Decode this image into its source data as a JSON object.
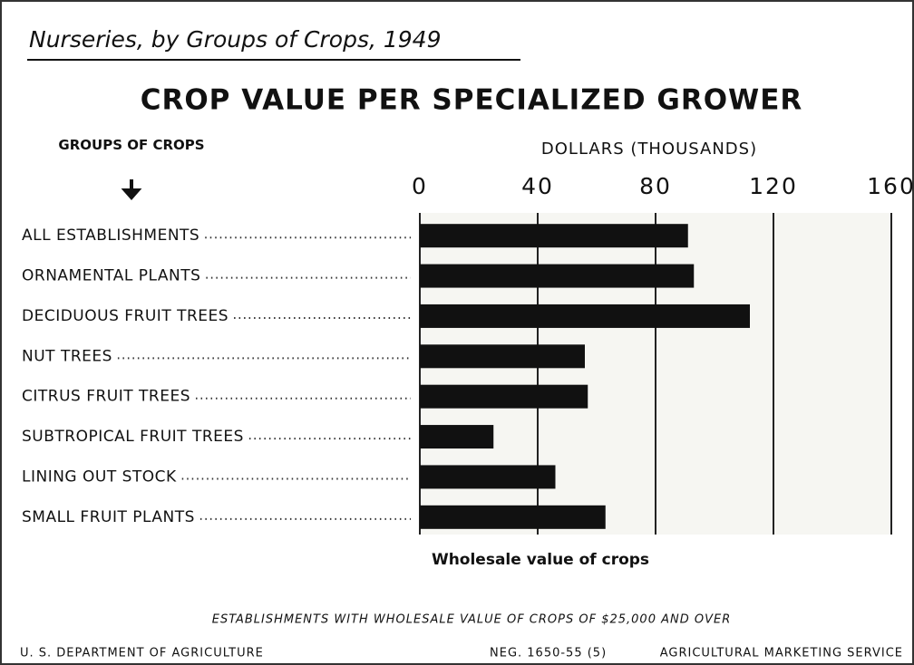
{
  "chart_data": {
    "type": "bar",
    "orientation": "horizontal",
    "subtitle": "Nurseries, by Groups of Crops, 1949",
    "title": "CROP VALUE PER SPECIALIZED GROWER",
    "category_axis_label": "GROUPS OF CROPS",
    "x_axis_label": "DOLLARS (THOUSANDS)",
    "caption": "Wholesale value of crops",
    "note": "ESTABLISHMENTS WITH WHOLESALE VALUE OF CROPS OF $25,000 AND OVER",
    "footer_left": "U. S. DEPARTMENT OF AGRICULTURE",
    "footer_middle": "NEG. 1650-55 (5)",
    "footer_right": "AGRICULTURAL MARKETING SERVICE",
    "categories": [
      "ALL ESTABLISHMENTS",
      "ORNAMENTAL PLANTS",
      "DECIDUOUS FRUIT TREES",
      "NUT TREES",
      "CITRUS FRUIT TREES",
      "SUBTROPICAL FRUIT TREES",
      "LINING OUT STOCK",
      "SMALL FRUIT PLANTS"
    ],
    "values": [
      91,
      93,
      112,
      56,
      57,
      25,
      46,
      63
    ],
    "color": "#111111",
    "xlim": [
      0,
      160
    ],
    "xticks": [
      0,
      40,
      80,
      120,
      160
    ],
    "grid": true
  }
}
